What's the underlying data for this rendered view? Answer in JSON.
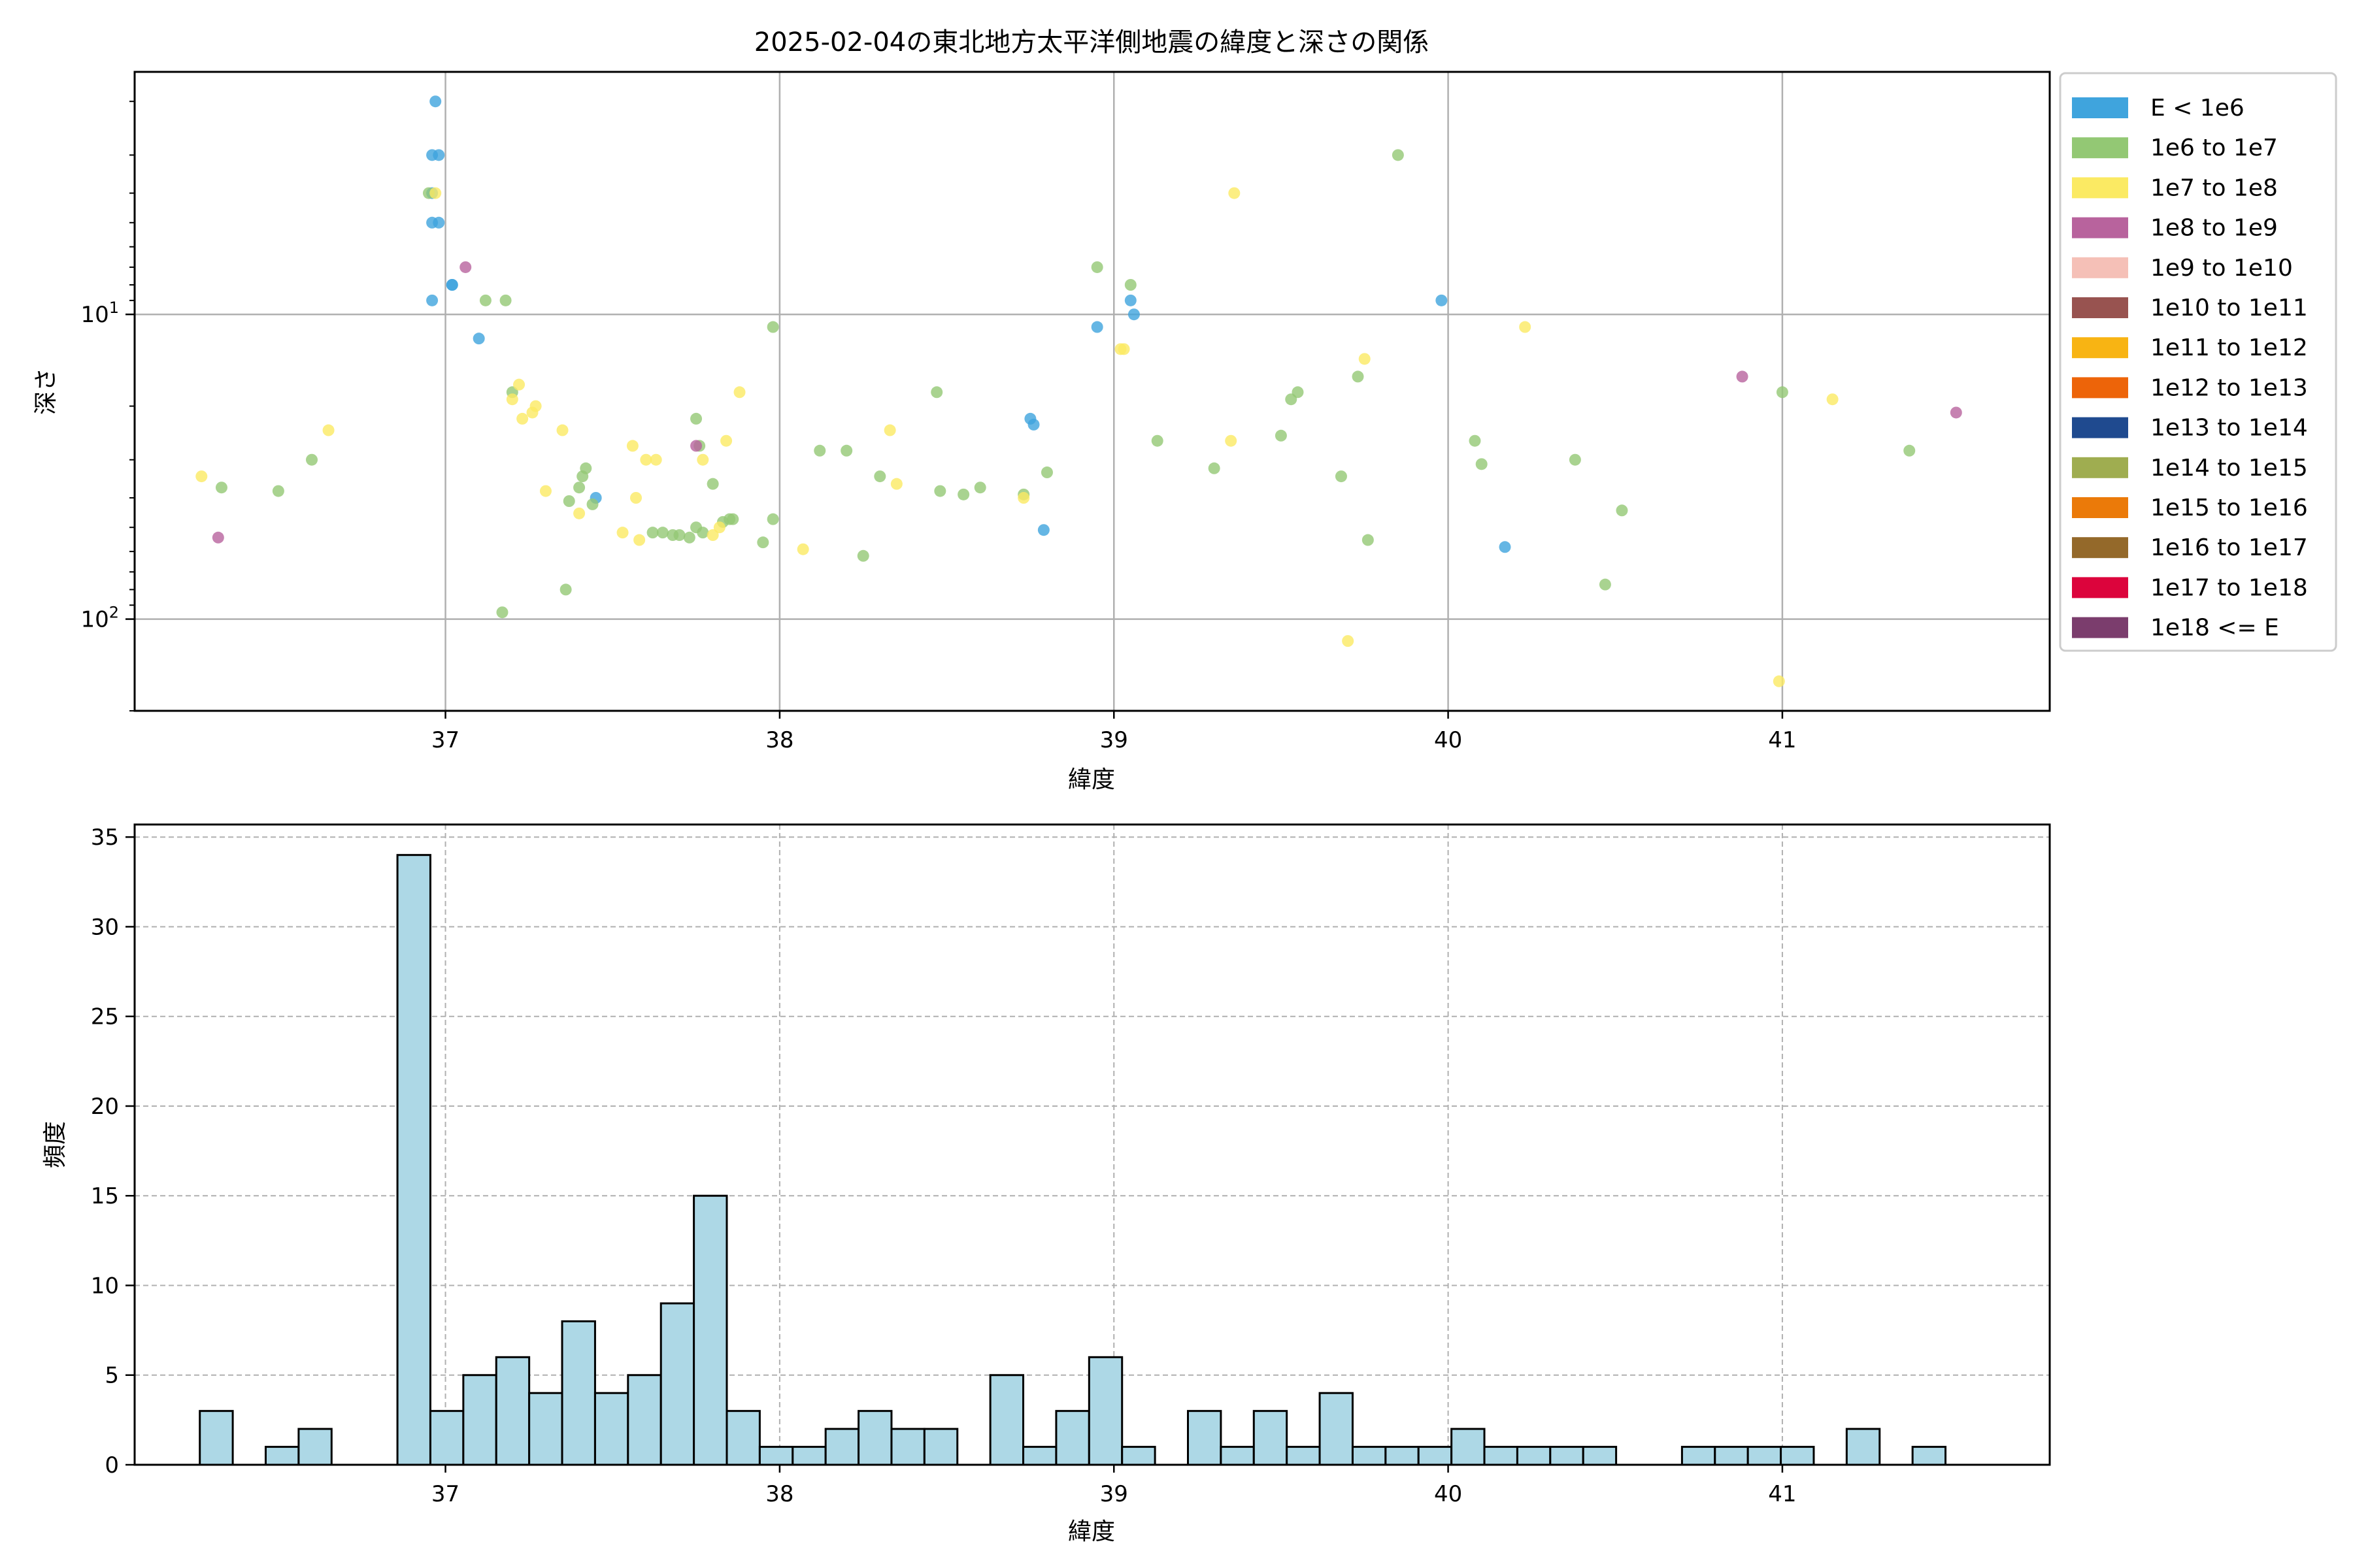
{
  "chart_data": [
    {
      "type": "scatter",
      "title": "2025-02-04の東北地方太平洋側地震の緯度と深さの関係",
      "xlabel": "緯度",
      "ylabel": "深さ",
      "xlim": [
        36.07,
        41.8
      ],
      "ylim": [
        200,
        1.6
      ],
      "yscale": "log",
      "y_inverted": true,
      "xticks": [
        "37",
        "38",
        "39",
        "40",
        "41"
      ],
      "yticks": [
        {
          "value": 10,
          "base": "10",
          "exp": "1"
        },
        {
          "value": 100,
          "base": "10",
          "exp": "2"
        }
      ],
      "grid": true,
      "legend_position": "outside-right",
      "legend": [
        {
          "label": "E < 1e6",
          "color": "#3fa4dd"
        },
        {
          "label": "1e6 to 1e7",
          "color": "#93c874"
        },
        {
          "label": "1e7 to 1e8",
          "color": "#fbea63"
        },
        {
          "label": "1e8 to 1e9",
          "color": "#b8639d"
        },
        {
          "label": "1e9 to 1e10",
          "color": "#f5c0b7"
        },
        {
          "label": "1e10 to 1e11",
          "color": "#985350"
        },
        {
          "label": "1e11 to 1e12",
          "color": "#f8b413"
        },
        {
          "label": "1e12 to 1e13",
          "color": "#ed6409"
        },
        {
          "label": "1e13 to 1e14",
          "color": "#1f4a8f"
        },
        {
          "label": "1e14 to 1e15",
          "color": "#9fad50"
        },
        {
          "label": "1e15 to 1e16",
          "color": "#eb7a09"
        },
        {
          "label": "1e16 to 1e17",
          "color": "#94692a"
        },
        {
          "label": "1e17 to 1e18",
          "color": "#dc043c"
        },
        {
          "label": "1e18 <= E",
          "color": "#7b3d6d"
        }
      ],
      "series": [
        {
          "name": "E < 1e6",
          "color": "#3fa4dd",
          "points": [
            [
              36.97,
              2
            ],
            [
              36.96,
              3
            ],
            [
              36.98,
              3
            ],
            [
              36.96,
              4
            ],
            [
              36.96,
              5
            ],
            [
              36.98,
              5
            ],
            [
              37.02,
              8
            ],
            [
              37.02,
              8
            ],
            [
              36.96,
              9
            ],
            [
              37.1,
              12
            ],
            [
              37.45,
              40
            ],
            [
              38.75,
              22
            ],
            [
              38.76,
              23
            ],
            [
              38.79,
              51
            ],
            [
              38.95,
              11
            ],
            [
              39.05,
              9
            ],
            [
              39.06,
              10
            ],
            [
              39.98,
              9
            ],
            [
              40.17,
              58
            ]
          ]
        },
        {
          "name": "1e6 to 1e7",
          "color": "#93c874",
          "points": [
            [
              36.95,
              4
            ],
            [
              37.12,
              9
            ],
            [
              37.18,
              9
            ],
            [
              37.2,
              18
            ],
            [
              36.33,
              37
            ],
            [
              36.5,
              38
            ],
            [
              36.6,
              30
            ],
            [
              37.17,
              95
            ],
            [
              37.36,
              80
            ],
            [
              37.37,
              41
            ],
            [
              37.4,
              37
            ],
            [
              37.41,
              34
            ],
            [
              37.42,
              32
            ],
            [
              37.44,
              42
            ],
            [
              37.62,
              52
            ],
            [
              37.65,
              52
            ],
            [
              37.68,
              53
            ],
            [
              37.7,
              53
            ],
            [
              37.73,
              54
            ],
            [
              37.75,
              50
            ],
            [
              37.77,
              52
            ],
            [
              37.75,
              22
            ],
            [
              37.76,
              27
            ],
            [
              37.8,
              36
            ],
            [
              37.83,
              48
            ],
            [
              37.85,
              47
            ],
            [
              37.86,
              47
            ],
            [
              37.95,
              56
            ],
            [
              37.98,
              47
            ],
            [
              37.98,
              11
            ],
            [
              38.12,
              28
            ],
            [
              38.2,
              28
            ],
            [
              38.25,
              62
            ],
            [
              38.3,
              34
            ],
            [
              38.47,
              18
            ],
            [
              38.48,
              38
            ],
            [
              38.55,
              39
            ],
            [
              38.6,
              37
            ],
            [
              38.73,
              39
            ],
            [
              38.8,
              33
            ],
            [
              38.95,
              7
            ],
            [
              39.05,
              8
            ],
            [
              39.13,
              26
            ],
            [
              39.3,
              32
            ],
            [
              39.5,
              25
            ],
            [
              39.53,
              19
            ],
            [
              39.55,
              18
            ],
            [
              39.68,
              34
            ],
            [
              39.73,
              16
            ],
            [
              39.76,
              55
            ],
            [
              39.85,
              3
            ],
            [
              40.08,
              26
            ],
            [
              40.1,
              31
            ],
            [
              40.38,
              30
            ],
            [
              40.47,
              77
            ],
            [
              40.52,
              44
            ],
            [
              41.0,
              18
            ],
            [
              41.38,
              28
            ]
          ]
        },
        {
          "name": "1e7 to 1e8",
          "color": "#fbea63",
          "points": [
            [
              36.27,
              34
            ],
            [
              36.65,
              24
            ],
            [
              36.97,
              4
            ],
            [
              37.2,
              19
            ],
            [
              37.22,
              17
            ],
            [
              37.23,
              22
            ],
            [
              37.26,
              21
            ],
            [
              37.27,
              20
            ],
            [
              37.3,
              38
            ],
            [
              37.35,
              24
            ],
            [
              37.4,
              45
            ],
            [
              37.53,
              52
            ],
            [
              37.56,
              27
            ],
            [
              37.58,
              55
            ],
            [
              37.57,
              40
            ],
            [
              37.6,
              30
            ],
            [
              37.63,
              30
            ],
            [
              37.77,
              30
            ],
            [
              37.8,
              53
            ],
            [
              37.84,
              26
            ],
            [
              37.82,
              50
            ],
            [
              37.88,
              18
            ],
            [
              38.07,
              59
            ],
            [
              38.33,
              24
            ],
            [
              38.35,
              36
            ],
            [
              38.73,
              40
            ],
            [
              39.02,
              13
            ],
            [
              39.03,
              13
            ],
            [
              39.35,
              26
            ],
            [
              39.36,
              4
            ],
            [
              39.7,
              118
            ],
            [
              39.75,
              14
            ],
            [
              40.23,
              11
            ],
            [
              40.99,
              160
            ],
            [
              41.15,
              19
            ]
          ]
        },
        {
          "name": "1e8 to 1e9",
          "color": "#b8639d",
          "points": [
            [
              36.32,
              54
            ],
            [
              37.06,
              7
            ],
            [
              37.75,
              27
            ],
            [
              40.88,
              16
            ],
            [
              41.52,
              21
            ]
          ]
        }
      ]
    },
    {
      "type": "histogram",
      "xlabel": "緯度",
      "ylabel": "頻度",
      "xlim": [
        36.07,
        41.8
      ],
      "ylim": [
        0,
        35.7
      ],
      "xticks": [
        "37",
        "38",
        "39",
        "40",
        "41"
      ],
      "yticks": [
        "0",
        "5",
        "10",
        "15",
        "20",
        "25",
        "30",
        "35"
      ],
      "grid": true,
      "bar_color": "#add8e6",
      "bin_start": 36.265,
      "bin_width": 0.09855,
      "counts": [
        3,
        0,
        1,
        2,
        0,
        0,
        34,
        3,
        5,
        6,
        4,
        8,
        4,
        5,
        9,
        15,
        3,
        1,
        1,
        2,
        3,
        2,
        2,
        0,
        5,
        1,
        3,
        6,
        1,
        0,
        3,
        1,
        3,
        1,
        4,
        1,
        1,
        1,
        2,
        1,
        1,
        1,
        1,
        0,
        0,
        1,
        1,
        1,
        1,
        0,
        2,
        0,
        1
      ]
    }
  ]
}
